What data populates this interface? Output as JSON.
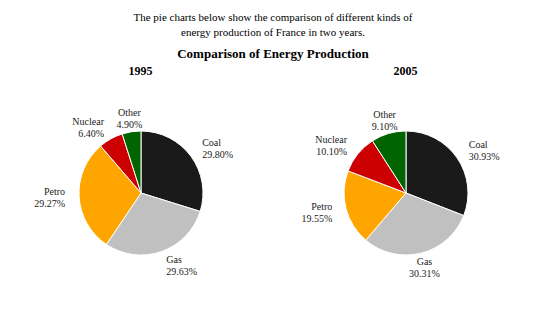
{
  "title": "Comparison of Energy Production",
  "subtitle": "The pie charts below show the comparison of different kinds of\nenergy production of France in two years.",
  "chart_data": [
    {
      "type": "pie",
      "title": "1995",
      "categories": [
        "Coal",
        "Gas",
        "Petro",
        "Nuclear",
        "Other"
      ],
      "values": [
        29.8,
        29.63,
        29.27,
        6.4,
        4.9
      ],
      "value_labels": [
        "29.80%",
        "29.63%",
        "29.27%",
        "6.40%",
        "4.90%"
      ],
      "colors": [
        "#1a1a1a",
        "#c0c0c0",
        "#ffa500",
        "#cc0000",
        "#006400"
      ],
      "data_labels": true
    },
    {
      "type": "pie",
      "title": "2005",
      "categories": [
        "Coal",
        "Gas",
        "Petro",
        "Nuclear",
        "Other"
      ],
      "values": [
        30.93,
        30.31,
        19.55,
        10.1,
        9.1
      ],
      "value_labels": [
        "30.93%",
        "30.31%",
        "19.55%",
        "10.10%",
        "9.10%"
      ],
      "colors": [
        "#1a1a1a",
        "#c0c0c0",
        "#ffa500",
        "#cc0000",
        "#006400"
      ],
      "data_labels": true
    }
  ]
}
